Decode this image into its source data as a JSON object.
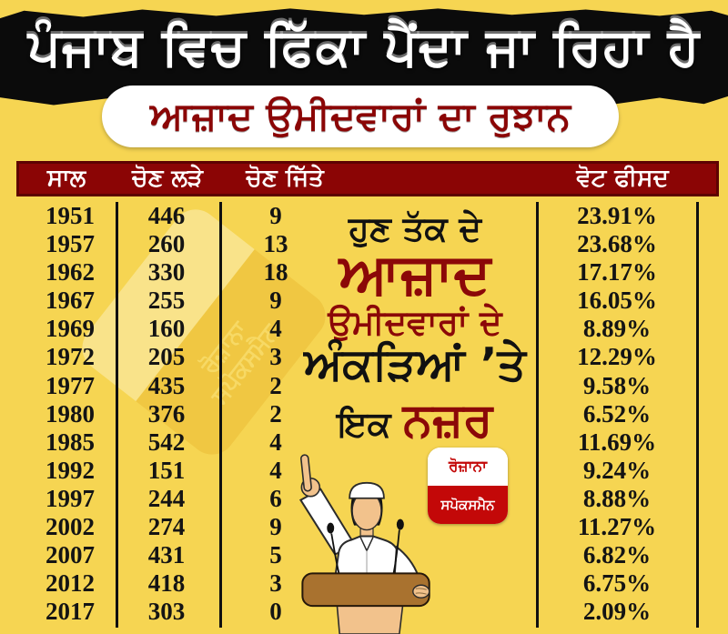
{
  "banner": {
    "title": "ਪੰਜਾਬ ਵਿਚ ਫਿੱਕਾ ਪੈਂਦਾ ਜਾ ਰਿਹਾ ਹੈ"
  },
  "subtitle_pill": {
    "text": "ਆਜ਼ਾਦ ਉਮੀਦਵਾਰਾਂ ਦਾ ਰੁਝਾਨ"
  },
  "promo": {
    "line1": "ਹੁਣ ਤੱਕ ਦੇ",
    "line2": "ਆਜ਼ਾਦ",
    "line3": "ਉਮੀਦਵਾਰਾਂ ਦੇ",
    "line4": "ਅੰਕੜਿਆਂ ’ਤੇ",
    "line5_black": "ਇਕ",
    "line5_red": "ਨਜ਼ਰ"
  },
  "logo": {
    "top": "ਰੋਜ਼ਾਨਾ",
    "bottom": "ਸਪੋਕਸਮੈਨ"
  },
  "watermark": {
    "line1": "ਰੋਜ਼ਾਨਾ",
    "line2": "ਸਪੋਕਸਮੈਨ"
  },
  "colors": {
    "background": "#F6D552",
    "banner_black": "#0B0B0B",
    "dark_red": "#8B0505",
    "logo_red": "#C30808",
    "text_black": "#141414",
    "podium_brown": "#A9722F",
    "skin_tan": "#F2C28C",
    "white": "#FFFFFF"
  },
  "chart_data": {
    "type": "table",
    "title": "ਪੰਜਾਬ ਵਿਚ ਫਿੱਕਾ ਪੈਂਦਾ ਜਾ ਰਿਹਾ ਹੈ — ਆਜ਼ਾਦ ਉਮੀਦਵਾਰਾਂ ਦਾ ਰੁਝਾਨ",
    "columns": [
      "ਸਾਲ",
      "ਚੋਣ ਲੜੇ",
      "ਚੋਣ ਜਿੱਤੇ",
      "ਵੋਟ ਫੀਸਦ"
    ],
    "rows": [
      [
        "1951",
        "446",
        "9",
        "23.91%"
      ],
      [
        "1957",
        "260",
        "13",
        "23.68%"
      ],
      [
        "1962",
        "330",
        "18",
        "17.17%"
      ],
      [
        "1967",
        "255",
        "9",
        "16.05%"
      ],
      [
        "1969",
        "160",
        "4",
        "8.89%"
      ],
      [
        "1972",
        "205",
        "3",
        "12.29%"
      ],
      [
        "1977",
        "435",
        "2",
        "9.58%"
      ],
      [
        "1980",
        "376",
        "2",
        "6.52%"
      ],
      [
        "1985",
        "542",
        "4",
        "11.69%"
      ],
      [
        "1992",
        "151",
        "4",
        "9.24%"
      ],
      [
        "1997",
        "244",
        "6",
        "8.88%"
      ],
      [
        "2002",
        "274",
        "9",
        "11.27%"
      ],
      [
        "2007",
        "431",
        "5",
        "6.82%"
      ],
      [
        "2012",
        "418",
        "3",
        "6.75%"
      ],
      [
        "2017",
        "303",
        "0",
        "2.09%"
      ]
    ]
  }
}
